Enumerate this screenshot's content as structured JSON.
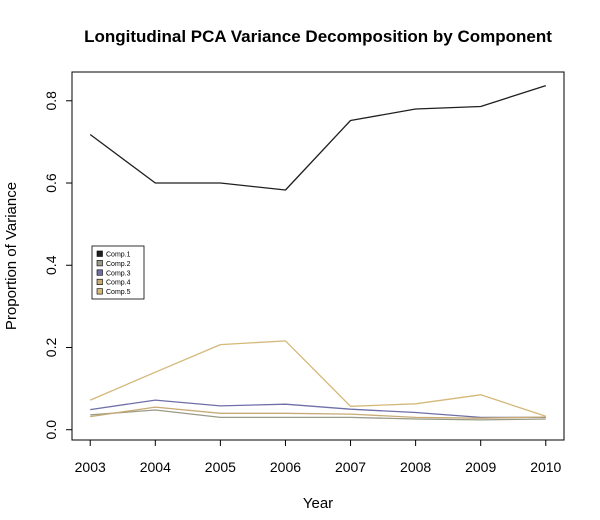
{
  "chart_data": {
    "type": "line",
    "title": "Longitudinal PCA Variance Decomposition by Component",
    "xlabel": "Year",
    "ylabel": "Proportion of Variance",
    "x": [
      2003,
      2004,
      2005,
      2006,
      2007,
      2008,
      2009,
      2010
    ],
    "x_ticks": [
      "2003",
      "2004",
      "2005",
      "2006",
      "2007",
      "2008",
      "2009",
      "2010"
    ],
    "y_ticks": [
      "0.0",
      "0.2",
      "0.4",
      "0.6",
      "0.8"
    ],
    "y_tick_values": [
      0.0,
      0.2,
      0.4,
      0.6,
      0.8
    ],
    "xlim": [
      2002.72,
      2010.28
    ],
    "ylim": [
      -0.025,
      0.87
    ],
    "grid": false,
    "legend_position": "left",
    "series": [
      {
        "name": "Comp.1",
        "color": "#1f1f1f",
        "values": [
          0.718,
          0.6,
          0.6,
          0.583,
          0.752,
          0.78,
          0.786,
          0.837
        ]
      },
      {
        "name": "Comp.2",
        "color": "#9a9a86",
        "values": [
          0.036,
          0.048,
          0.03,
          0.03,
          0.03,
          0.026,
          0.024,
          0.026
        ]
      },
      {
        "name": "Comp.3",
        "color": "#6f6fa8",
        "values": [
          0.049,
          0.072,
          0.058,
          0.062,
          0.05,
          0.042,
          0.03,
          0.03
        ]
      },
      {
        "name": "Comp.4",
        "color": "#c8aa74",
        "values": [
          0.032,
          0.055,
          0.04,
          0.04,
          0.038,
          0.03,
          0.028,
          0.031
        ]
      },
      {
        "name": "Comp.5",
        "color": "#d4b878",
        "values": [
          0.072,
          0.14,
          0.207,
          0.216,
          0.057,
          0.063,
          0.085,
          0.033
        ]
      }
    ]
  }
}
